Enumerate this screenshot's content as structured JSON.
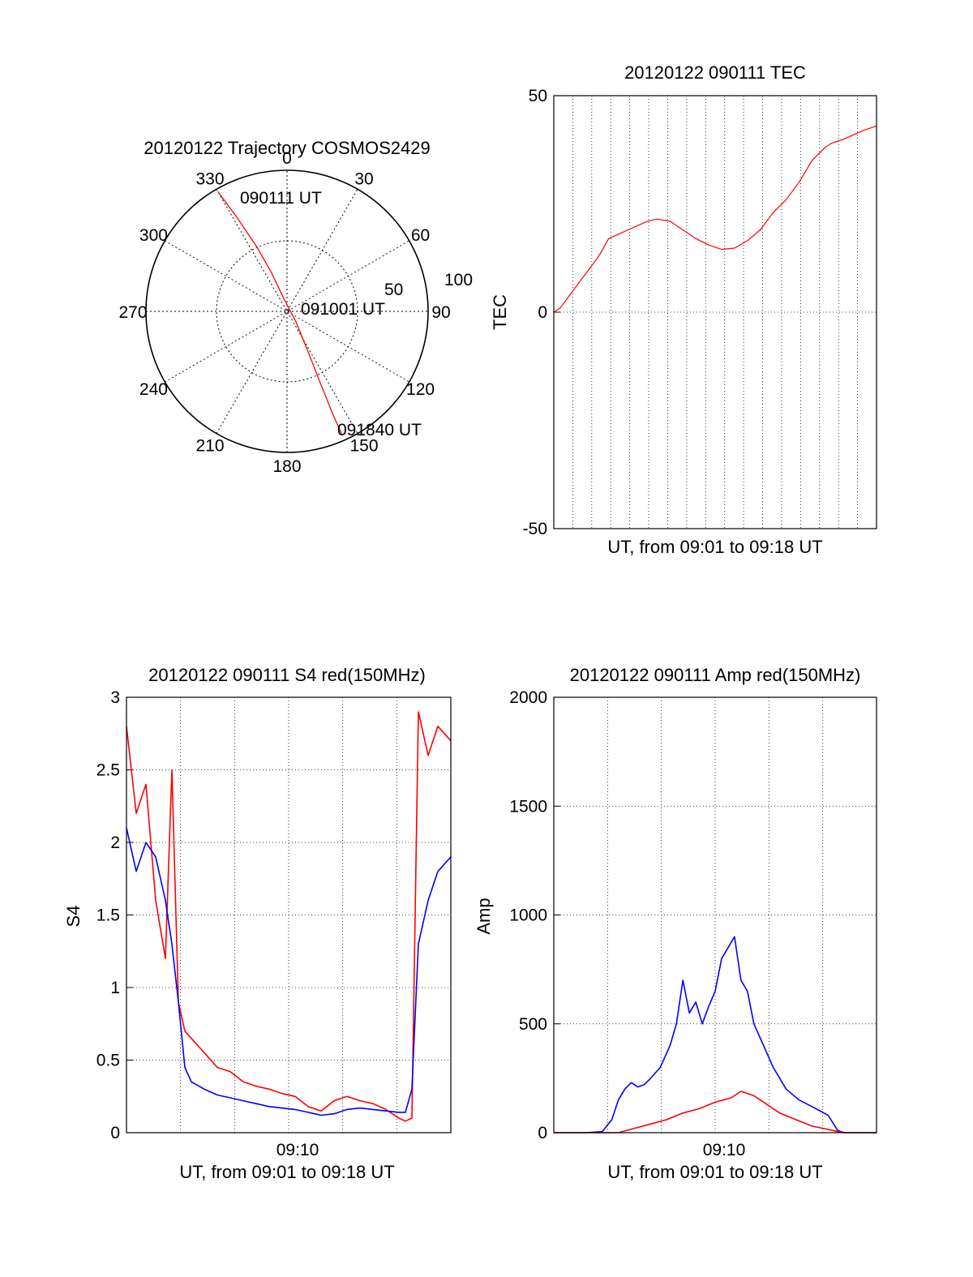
{
  "chart_data": [
    {
      "type": "polar",
      "title": "20120122 Trajectory COSMOS2429",
      "angle_labels": [
        "0",
        "30",
        "60",
        "90",
        "120",
        "150",
        "180",
        "210",
        "240",
        "270",
        "300",
        "330"
      ],
      "radial_labels": [
        "50",
        "100"
      ],
      "series": [
        {
          "color": "#ff0000",
          "points": [
            {
              "azimuth": 330,
              "elevation_ring": 0.98
            },
            {
              "azimuth": 332,
              "elevation_ring": 0.75
            },
            {
              "azimuth": 335,
              "elevation_ring": 0.5
            },
            {
              "azimuth": 338,
              "elevation_ring": 0.3
            },
            {
              "azimuth": 345,
              "elevation_ring": 0.1
            },
            {
              "azimuth": 140,
              "elevation_ring": 0.1
            },
            {
              "azimuth": 152,
              "elevation_ring": 0.3
            },
            {
              "azimuth": 155,
              "elevation_ring": 0.55
            },
            {
              "azimuth": 156,
              "elevation_ring": 0.8
            },
            {
              "azimuth": 156,
              "elevation_ring": 0.95
            }
          ]
        }
      ],
      "annotations": [
        "090111 UT",
        "091001 UT",
        "091840 UT"
      ]
    },
    {
      "type": "line",
      "title": "20120122 090111 TEC",
      "xlabel": "UT, from 09:01 to 09:18 UT",
      "ylabel": "TEC",
      "ylim": [
        -50,
        50
      ],
      "xlim": [
        0,
        1
      ],
      "yticks": [
        "50",
        "0",
        "-50"
      ],
      "grid": true,
      "series": [
        {
          "color": "#ff0000",
          "x": [
            0.0,
            0.02,
            0.05,
            0.08,
            0.11,
            0.14,
            0.17,
            0.2,
            0.23,
            0.26,
            0.29,
            0.32,
            0.36,
            0.4,
            0.44,
            0.48,
            0.52,
            0.56,
            0.6,
            0.64,
            0.68,
            0.72,
            0.76,
            0.8,
            0.84,
            0.86,
            0.88,
            0.9,
            0.93,
            0.96,
            1.0
          ],
          "y": [
            0,
            1,
            4,
            7,
            10,
            13,
            17,
            18,
            19,
            20,
            21,
            21.5,
            21,
            19,
            17,
            15.5,
            14.5,
            14.8,
            16.5,
            19,
            23,
            26,
            30,
            35,
            38,
            39,
            39.5,
            40,
            41,
            42,
            43
          ]
        }
      ]
    },
    {
      "type": "line",
      "title": "20120122 090111 S4 red(150MHz)",
      "xlabel": "UT, from 09:01 to 09:18 UT",
      "ylabel": "S4",
      "ylim": [
        0,
        3
      ],
      "yticks": [
        "3",
        "2.5",
        "2",
        "1.5",
        "1",
        "0.5",
        "0"
      ],
      "xticks": [
        "09:10"
      ],
      "grid": true,
      "series": [
        {
          "color": "#ff0000",
          "x": [
            0.0,
            0.03,
            0.06,
            0.09,
            0.12,
            0.14,
            0.16,
            0.18,
            0.2,
            0.24,
            0.28,
            0.32,
            0.36,
            0.4,
            0.44,
            0.48,
            0.52,
            0.56,
            0.6,
            0.64,
            0.68,
            0.72,
            0.76,
            0.8,
            0.84,
            0.86,
            0.88,
            0.9,
            0.93,
            0.96,
            1.0
          ],
          "y": [
            2.8,
            2.2,
            2.4,
            1.6,
            1.2,
            2.5,
            0.9,
            0.7,
            0.65,
            0.55,
            0.45,
            0.42,
            0.35,
            0.32,
            0.3,
            0.27,
            0.25,
            0.18,
            0.15,
            0.22,
            0.25,
            0.22,
            0.2,
            0.16,
            0.1,
            0.08,
            0.1,
            2.9,
            2.6,
            2.8,
            2.7
          ]
        },
        {
          "color": "#0000ff",
          "x": [
            0.0,
            0.03,
            0.06,
            0.09,
            0.12,
            0.14,
            0.16,
            0.18,
            0.2,
            0.24,
            0.28,
            0.32,
            0.36,
            0.4,
            0.44,
            0.48,
            0.52,
            0.56,
            0.6,
            0.64,
            0.68,
            0.72,
            0.76,
            0.8,
            0.84,
            0.86,
            0.88,
            0.9,
            0.93,
            0.96,
            1.0
          ],
          "y": [
            2.1,
            1.8,
            2.0,
            1.9,
            1.6,
            1.3,
            0.9,
            0.45,
            0.35,
            0.3,
            0.26,
            0.24,
            0.22,
            0.2,
            0.18,
            0.17,
            0.16,
            0.14,
            0.12,
            0.13,
            0.16,
            0.17,
            0.16,
            0.15,
            0.14,
            0.14,
            0.3,
            1.3,
            1.6,
            1.8,
            1.9
          ]
        }
      ]
    },
    {
      "type": "line",
      "title": "20120122 090111 Amp red(150MHz)",
      "xlabel": "UT, from 09:01 to 09:18 UT",
      "ylabel": "Amp",
      "ylim": [
        0,
        2000
      ],
      "yticks": [
        "2000",
        "1500",
        "1000",
        "500",
        "0"
      ],
      "xticks": [
        "09:10"
      ],
      "grid": true,
      "series": [
        {
          "color": "#0000ff",
          "x": [
            0.0,
            0.1,
            0.15,
            0.18,
            0.2,
            0.22,
            0.24,
            0.26,
            0.28,
            0.3,
            0.33,
            0.36,
            0.38,
            0.4,
            0.42,
            0.44,
            0.46,
            0.48,
            0.5,
            0.52,
            0.54,
            0.56,
            0.58,
            0.6,
            0.62,
            0.65,
            0.68,
            0.72,
            0.76,
            0.8,
            0.85,
            0.88,
            0.9,
            1.0
          ],
          "y": [
            0,
            0,
            5,
            60,
            150,
            200,
            230,
            210,
            220,
            250,
            300,
            400,
            500,
            700,
            550,
            600,
            500,
            580,
            650,
            800,
            850,
            900,
            700,
            650,
            500,
            400,
            300,
            200,
            150,
            120,
            80,
            10,
            0,
            0
          ]
        },
        {
          "color": "#ff0000",
          "x": [
            0.0,
            0.2,
            0.25,
            0.3,
            0.35,
            0.4,
            0.45,
            0.5,
            0.55,
            0.58,
            0.62,
            0.66,
            0.7,
            0.75,
            0.8,
            0.85,
            0.88,
            0.9,
            1.0
          ],
          "y": [
            0,
            0,
            20,
            40,
            60,
            90,
            110,
            140,
            160,
            190,
            170,
            130,
            90,
            60,
            30,
            15,
            5,
            0,
            0
          ]
        }
      ]
    }
  ]
}
